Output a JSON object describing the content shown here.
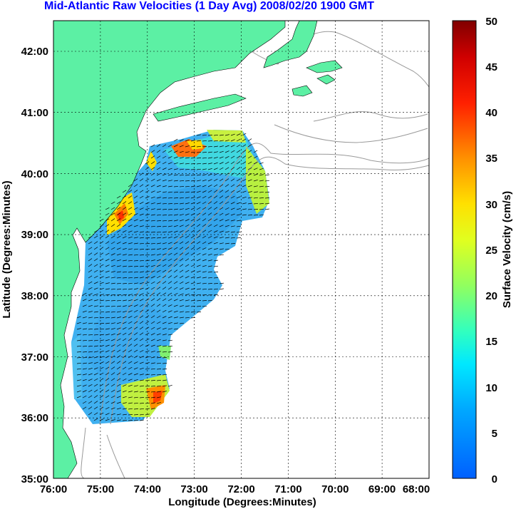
{
  "title": "Mid-Atlantic Raw Velocities (1 Day Avg) 2008/02/20 1900 GMT",
  "map": {
    "xlabel": "Longitude (Degrees:Minutes)",
    "ylabel": "Latitude (Degrees:Minutes)",
    "x_ticks": [
      "76:00",
      "75:00",
      "74:00",
      "73:00",
      "72:00",
      "71:00",
      "70:00",
      "69:00",
      "68:00"
    ],
    "y_ticks": [
      "42:00",
      "41:00",
      "40:00",
      "39:00",
      "38:00",
      "37:00",
      "36:00",
      "35:00"
    ],
    "land_color": "#5cf0a4",
    "isobath_color": "#999999"
  },
  "colorbar": {
    "label": "Surface Velocity (cm/s)",
    "ticks": [
      "50",
      "45",
      "40",
      "35",
      "30",
      "25",
      "20",
      "15",
      "10",
      "5",
      "0"
    ],
    "min": 0,
    "max": 50,
    "colors": [
      "#0070ff",
      "#00c8ff",
      "#00ffe0",
      "#50ff90",
      "#c8ff30",
      "#ffee00",
      "#ffa000",
      "#ff4000",
      "#e00000",
      "#800000"
    ]
  }
}
